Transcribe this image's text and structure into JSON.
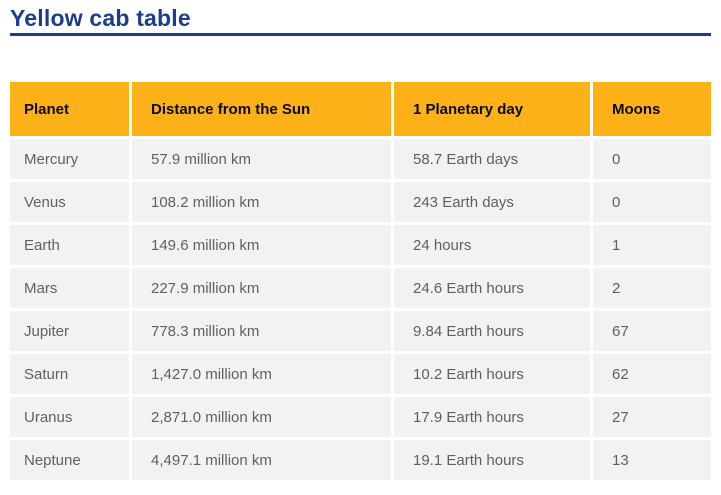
{
  "page": {
    "title": "Yellow cab table"
  },
  "theme": {
    "header_yellow": "#fbb117",
    "title_navy": "#1c3d8c",
    "row_gray": "#f2f2f2",
    "body_text_gray": "#5f6062",
    "header_text": "#0b0b0b"
  },
  "table": {
    "headers": [
      "Planet",
      "Distance from the Sun",
      "1 Planetary day",
      "Moons"
    ],
    "rows": [
      {
        "planet": "Mercury",
        "distance": "57.9 million km",
        "day": "58.7 Earth days",
        "moons": "0"
      },
      {
        "planet": "Venus",
        "distance": "108.2 million km",
        "day": "243 Earth days",
        "moons": "0"
      },
      {
        "planet": "Earth",
        "distance": "149.6 million km",
        "day": "24 hours",
        "moons": "1"
      },
      {
        "planet": "Mars",
        "distance": "227.9 million km",
        "day": "24.6 Earth hours",
        "moons": "2"
      },
      {
        "planet": "Jupiter",
        "distance": "778.3 million km",
        "day": "9.84 Earth hours",
        "moons": "67"
      },
      {
        "planet": "Saturn",
        "distance": "1,427.0 million km",
        "day": "10.2 Earth hours",
        "moons": "62"
      },
      {
        "planet": "Uranus",
        "distance": "2,871.0 million km",
        "day": "17.9 Earth hours",
        "moons": "27"
      },
      {
        "planet": "Neptune",
        "distance": "4,497.1 million km",
        "day": "19.1 Earth hours",
        "moons": "13"
      }
    ]
  },
  "chart_data": {
    "type": "table",
    "title": "Yellow cab table",
    "columns": [
      "Planet",
      "Distance from the Sun",
      "1 Planetary day",
      "Moons"
    ],
    "rows": [
      [
        "Mercury",
        "57.9 million km",
        "58.7 Earth days",
        "0"
      ],
      [
        "Venus",
        "108.2 million km",
        "243 Earth days",
        "0"
      ],
      [
        "Earth",
        "149.6 million km",
        "24 hours",
        "1"
      ],
      [
        "Mars",
        "227.9 million km",
        "24.6 Earth hours",
        "2"
      ],
      [
        "Jupiter",
        "778.3 million km",
        "9.84 Earth hours",
        "67"
      ],
      [
        "Saturn",
        "1,427.0 million km",
        "10.2 Earth hours",
        "62"
      ],
      [
        "Uranus",
        "2,871.0 million km",
        "17.9 Earth hours",
        "27"
      ],
      [
        "Neptune",
        "4,497.1 million km",
        "19.1 Earth hours",
        "13"
      ]
    ]
  }
}
